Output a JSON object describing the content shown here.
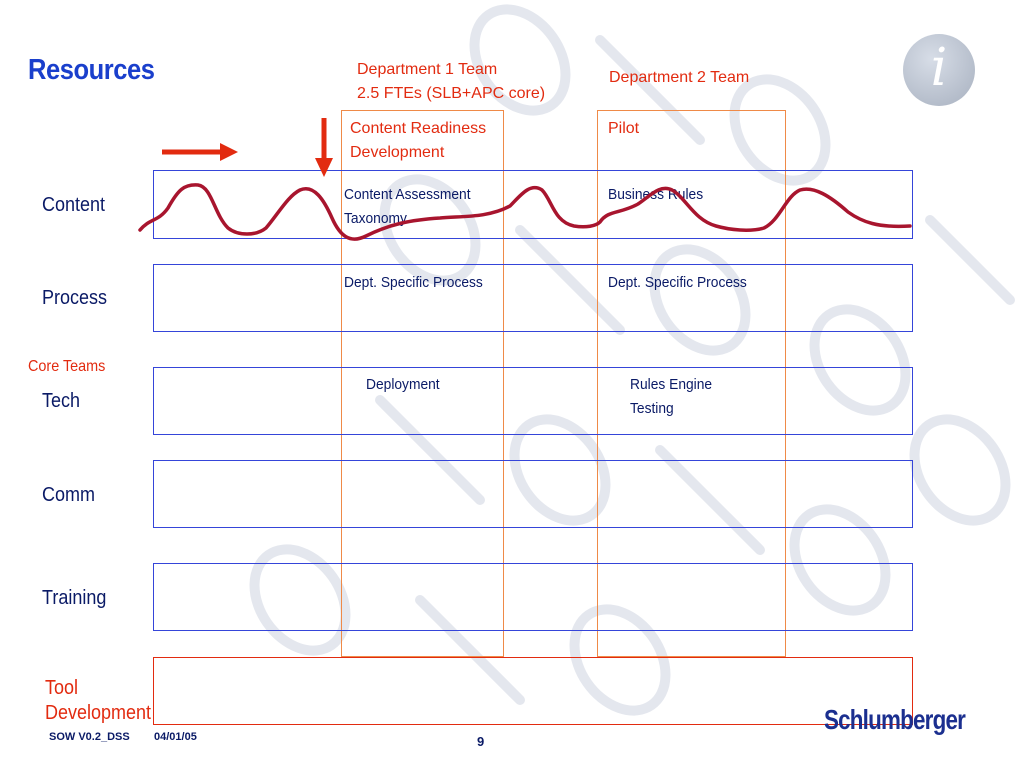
{
  "title": "Resources",
  "columns": {
    "dept1": {
      "header_line1": "Department 1 Team",
      "header_line2": "2.5 FTEs (SLB+APC core)",
      "sub_line1": "Content Readiness",
      "sub_line2": "Development"
    },
    "dept2": {
      "header": "Department 2 Team",
      "sub": "Pilot"
    }
  },
  "rows": {
    "content": "Content",
    "process": "Process",
    "core_teams": "Core Teams",
    "tech": "Tech",
    "comm": "Comm",
    "training": "Training",
    "tool_dev_line1": "Tool",
    "tool_dev_line2": "Development"
  },
  "cells": {
    "content_dept1_line1": "Content Assessment",
    "content_dept1_line2": "Taxonomy",
    "content_dept2": "Business Rules",
    "process_dept1": "Dept. Specific Process",
    "process_dept2": "Dept. Specific Process",
    "tech_dept1": "Deployment",
    "tech_dept2_line1": "Rules Engine",
    "tech_dept2_line2": "Testing"
  },
  "footer": {
    "doc": "SOW V0.2_DSS",
    "date": "04/01/05",
    "page": "9"
  },
  "brand": "Schlumberger",
  "colors": {
    "title": "#1a3fcc",
    "accent_red": "#e22b10",
    "row_border": "#3545d9",
    "column_border": "#ef8a48",
    "wave": "#a8152e"
  },
  "icons": [
    "info-icon",
    "arrow-right-icon",
    "arrow-down-icon"
  ]
}
